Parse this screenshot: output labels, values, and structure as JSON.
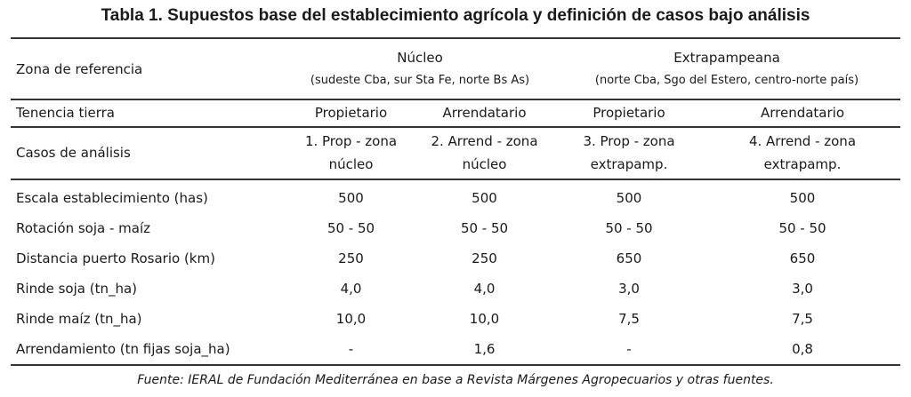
{
  "title": "Tabla 1. Supuestos base del establecimiento agrícola y definición de casos bajo análisis",
  "header": {
    "zona_label": "Zona de referencia",
    "nucleo": {
      "name": "Núcleo",
      "sub": "(sudeste Cba, sur Sta Fe, norte Bs As)"
    },
    "extra": {
      "name": "Extrapampeana",
      "sub": "(norte Cba, Sgo del Estero, centro-norte país)"
    }
  },
  "tenencia": {
    "label": "Tenencia tierra",
    "values": [
      "Propietario",
      "Arrendatario",
      "Propietario",
      "Arrendatario"
    ]
  },
  "casos": {
    "label": "Casos de análisis",
    "values": [
      [
        "1. Prop - zona",
        "núcleo"
      ],
      [
        "2. Arrend - zona",
        "núcleo"
      ],
      [
        "3. Prop - zona",
        "extrapamp."
      ],
      [
        "4. Arrend - zona",
        "extrapamp."
      ]
    ]
  },
  "rows": [
    {
      "label": "Escala establecimiento (has)",
      "values": [
        "500",
        "500",
        "500",
        "500"
      ]
    },
    {
      "label": "Rotación soja - maíz",
      "values": [
        "50 - 50",
        "50 - 50",
        "50 - 50",
        "50 - 50"
      ]
    },
    {
      "label": "Distancia puerto Rosario (km)",
      "values": [
        "250",
        "250",
        "650",
        "650"
      ]
    },
    {
      "label": "Rinde soja (tn_ha)",
      "values": [
        "4,0",
        "4,0",
        "3,0",
        "3,0"
      ]
    },
    {
      "label": "Rinde maíz (tn_ha)",
      "values": [
        "10,0",
        "10,0",
        "7,5",
        "7,5"
      ]
    },
    {
      "label": "Arrendamiento (tn fijas soja_ha)",
      "values": [
        "-",
        "1,6",
        "-",
        "0,8"
      ]
    }
  ],
  "source": "Fuente: IERAL de Fundación Mediterránea en base a Revista Márgenes Agropecuarios y otras fuentes."
}
